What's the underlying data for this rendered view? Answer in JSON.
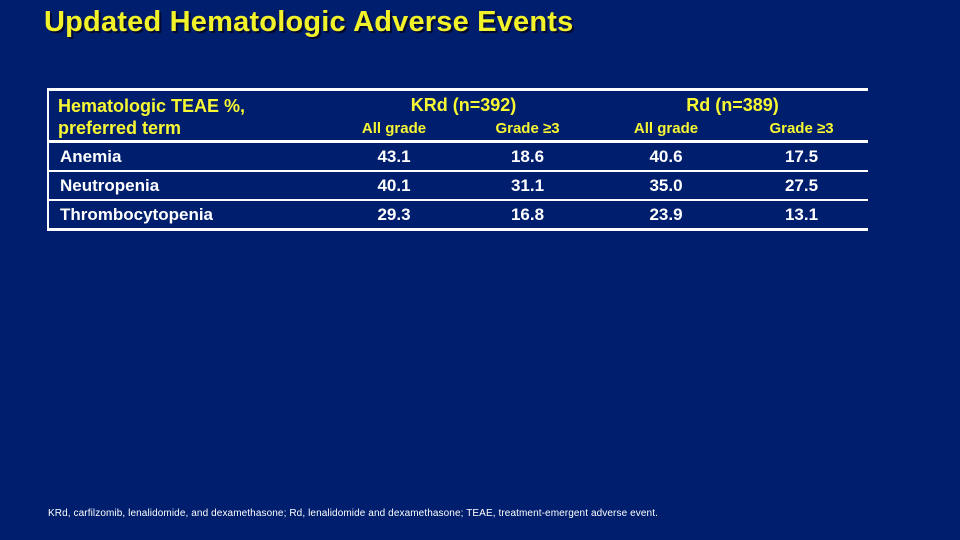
{
  "slide": {
    "title": "Updated Hematologic Adverse Events",
    "footnote": "KRd, carfilzomib, lenalidomide, and dexamethasone; Rd, lenalidomide and dexamethasone; TEAE, treatment-emergent adverse event."
  },
  "colors": {
    "background": "#001E6E",
    "accent_yellow": "#F7F733",
    "text_white": "#FFFFFF",
    "rule_lines": "#FFFFFF"
  },
  "table": {
    "row_header_line1": "Hematologic TEAE %,",
    "row_header_line2": "preferred term",
    "groups": [
      {
        "label": "KRd (n=392)",
        "columns": [
          "All grade",
          "Grade ≥3"
        ]
      },
      {
        "label": "Rd (n=389)",
        "columns": [
          "All grade",
          "Grade ≥3"
        ]
      }
    ],
    "rows": [
      {
        "term": "Anemia",
        "values": [
          "43.1",
          "18.6",
          "40.6",
          "17.5"
        ]
      },
      {
        "term": "Neutropenia",
        "values": [
          "40.1",
          "31.1",
          "35.0",
          "27.5"
        ]
      },
      {
        "term": "Thrombocytopenia",
        "values": [
          "29.3",
          "16.8",
          "23.9",
          "13.1"
        ]
      }
    ]
  },
  "chart_data": {
    "type": "table",
    "title": "Updated Hematologic Adverse Events",
    "columns": [
      "Hematologic TEAE %, preferred term",
      "KRd (n=392) All grade",
      "KRd (n=392) Grade ≥3",
      "Rd (n=389) All grade",
      "Rd (n=389) Grade ≥3"
    ],
    "rows": [
      [
        "Anemia",
        43.1,
        18.6,
        40.6,
        17.5
      ],
      [
        "Neutropenia",
        40.1,
        31.1,
        35.0,
        27.5
      ],
      [
        "Thrombocytopenia",
        29.3,
        16.8,
        23.9,
        13.1
      ]
    ]
  }
}
